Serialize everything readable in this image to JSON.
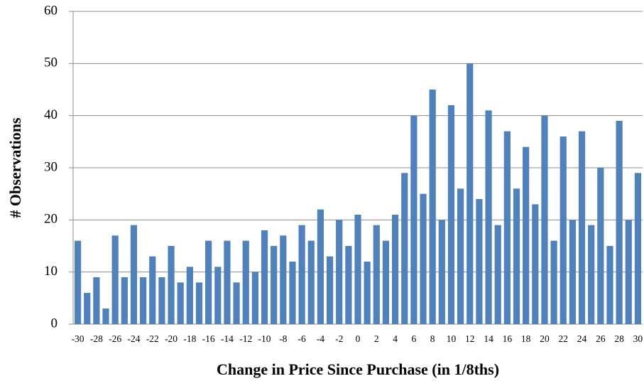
{
  "chart_data": {
    "type": "bar",
    "x_label": "Change in Price Since Purchase (in 1/8ths)",
    "y_label": "# Observations",
    "categories": [
      -30,
      null,
      -28,
      null,
      -26,
      null,
      -24,
      null,
      -22,
      null,
      -20,
      null,
      -18,
      null,
      -16,
      null,
      -14,
      null,
      -12,
      null,
      -10,
      null,
      -8,
      null,
      -6,
      null,
      -4,
      null,
      -2,
      null,
      0,
      null,
      2,
      null,
      4,
      null,
      6,
      null,
      8,
      null,
      10,
      null,
      12,
      null,
      14,
      null,
      16,
      null,
      18,
      null,
      20,
      null,
      22,
      null,
      24,
      null,
      26,
      null,
      28,
      null,
      30
    ],
    "values": [
      16,
      6,
      9,
      3,
      17,
      9,
      19,
      9,
      13,
      9,
      15,
      8,
      11,
      8,
      16,
      11,
      16,
      8,
      16,
      10,
      18,
      15,
      17,
      12,
      19,
      16,
      22,
      13,
      20,
      15,
      21,
      12,
      19,
      16,
      21,
      29,
      40,
      25,
      45,
      20,
      42,
      26,
      50,
      24,
      41,
      19,
      37,
      26,
      34,
      23,
      40,
      16,
      36,
      20,
      37,
      19,
      30,
      15,
      39,
      20,
      29
    ],
    "color": "#4f81bd",
    "ylim": [
      0,
      60
    ],
    "yticks": [
      0,
      10,
      20,
      30,
      40,
      50,
      60
    ],
    "grid": true
  }
}
